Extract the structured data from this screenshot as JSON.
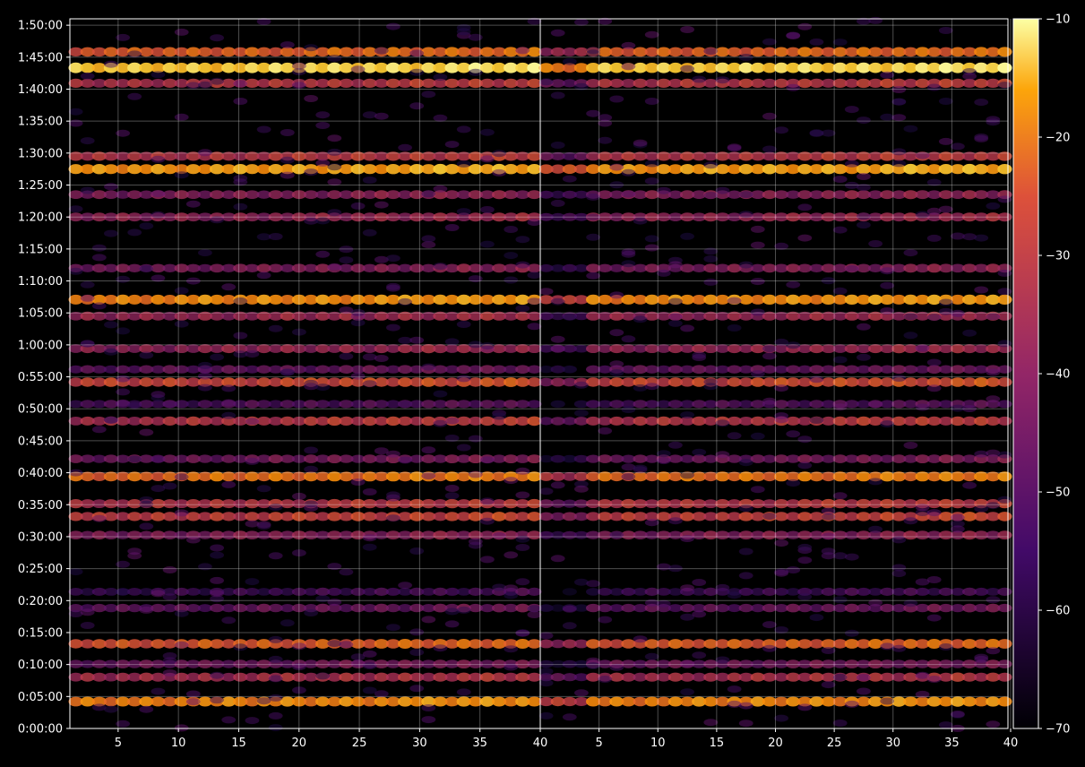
{
  "chart_data": {
    "type": "heatmap",
    "title": "",
    "xlabel": "",
    "ylabel": "",
    "colormap": "inferno",
    "background": "#000000",
    "grid": true,
    "panels": [
      {
        "name": "",
        "xlim": [
          1,
          40
        ]
      },
      {
        "name": "",
        "xlim": [
          40,
          80
        ]
      }
    ],
    "x_ticks": [
      "5",
      "10",
      "15",
      "20",
      "25",
      "30",
      "35",
      "40",
      "5",
      "10",
      "15",
      "20",
      "25",
      "30",
      "35",
      "40"
    ],
    "y_ticks": [
      "0:00:00",
      "0:05:00",
      "0:10:00",
      "0:15:00",
      "0:20:00",
      "0:25:00",
      "0:30:00",
      "0:35:00",
      "0:40:00",
      "0:45:00",
      "0:50:00",
      "0:55:00",
      "1:00:00",
      "1:05:00",
      "1:10:00",
      "1:15:00",
      "1:20:00",
      "1:25:00",
      "1:30:00",
      "1:35:00",
      "1:40:00",
      "1:45:00",
      "1:50:00"
    ],
    "ylim_seconds": [
      0,
      6660
    ],
    "colorbar": {
      "min": -70,
      "max": -10,
      "ticks": [
        "−10",
        "−20",
        "−30",
        "−40",
        "−50",
        "−60",
        "−70"
      ]
    },
    "bands": [
      {
        "t": 252,
        "level": -27
      },
      {
        "t": 482,
        "level": -42
      },
      {
        "t": 605,
        "level": -50
      },
      {
        "t": 795,
        "level": -33
      },
      {
        "t": 1130,
        "level": -52
      },
      {
        "t": 1283,
        "level": -58
      },
      {
        "t": 1815,
        "level": -47
      },
      {
        "t": 1990,
        "level": -38
      },
      {
        "t": 2110,
        "level": -40
      },
      {
        "t": 2365,
        "level": -30
      },
      {
        "t": 2530,
        "level": -50
      },
      {
        "t": 2885,
        "level": -40
      },
      {
        "t": 3045,
        "level": -55
      },
      {
        "t": 3250,
        "level": -36
      },
      {
        "t": 3370,
        "level": -52
      },
      {
        "t": 3565,
        "level": -45
      },
      {
        "t": 3870,
        "level": -44
      },
      {
        "t": 4025,
        "level": -26
      },
      {
        "t": 4320,
        "level": -48
      },
      {
        "t": 4800,
        "level": -45
      },
      {
        "t": 5010,
        "level": -47
      },
      {
        "t": 5250,
        "level": -24
      },
      {
        "t": 5370,
        "level": -40
      },
      {
        "t": 6055,
        "level": -40
      },
      {
        "t": 6200,
        "level": -18
      },
      {
        "t": 6350,
        "level": -32
      }
    ]
  }
}
